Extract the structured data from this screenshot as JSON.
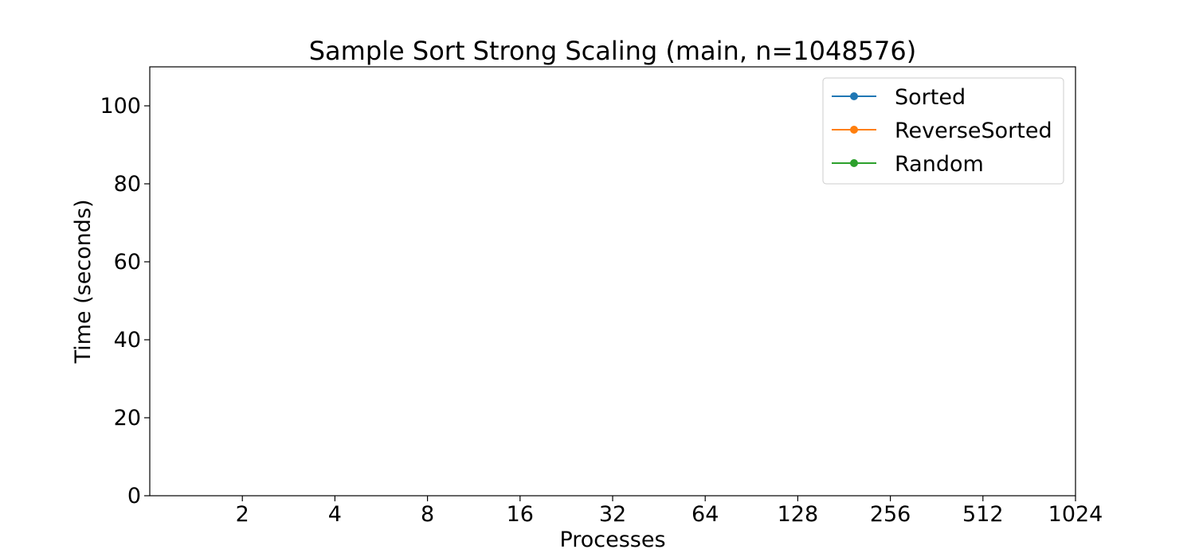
{
  "chart_data": {
    "type": "line",
    "title": "Sample Sort Strong Scaling (main, n=1048576)",
    "xlabel": "Processes",
    "ylabel": "Time (seconds)",
    "x_scale": "log2",
    "x_ticks": [
      2,
      4,
      8,
      16,
      32,
      64,
      128,
      256,
      512,
      1024
    ],
    "x_tick_labels": [
      "2",
      "4",
      "8",
      "16",
      "32",
      "64",
      "128",
      "256",
      "512",
      "1024"
    ],
    "y_ticks": [
      0,
      20,
      40,
      60,
      80,
      100
    ],
    "y_tick_labels": [
      "0",
      "20",
      "40",
      "60",
      "80",
      "100"
    ],
    "ylim": [
      0,
      110
    ],
    "grid": false,
    "legend_position": "top-right",
    "series": [
      {
        "name": "Sorted",
        "color": "#1f77b4",
        "x": [],
        "y": []
      },
      {
        "name": "ReverseSorted",
        "color": "#ff7f0e",
        "x": [],
        "y": []
      },
      {
        "name": "Random",
        "color": "#2ca02c",
        "x": [],
        "y": []
      }
    ]
  }
}
